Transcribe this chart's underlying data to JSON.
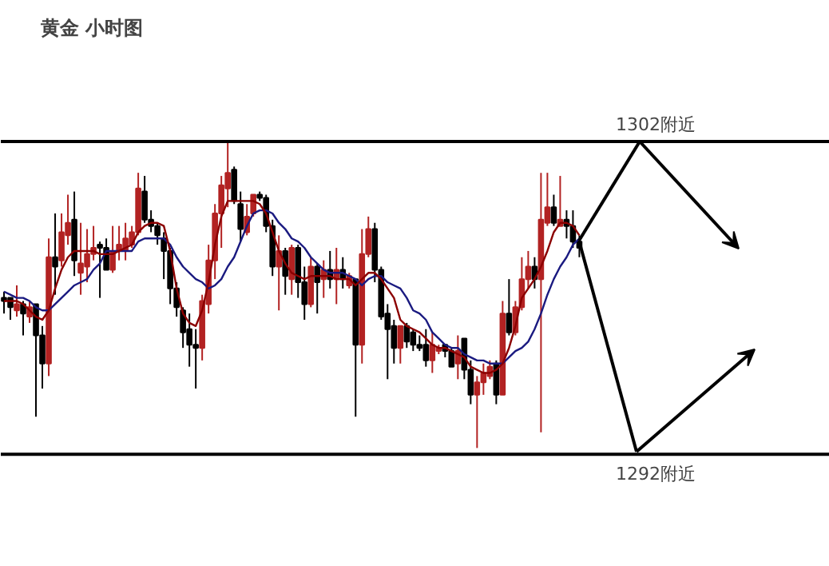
{
  "chart_data": {
    "type": "candlestick",
    "title": "黄金 小时图",
    "categories": [
      null,
      null,
      null,
      null,
      null,
      null,
      null,
      null,
      null,
      null,
      null,
      null,
      null,
      null,
      null,
      null,
      null,
      null,
      null,
      null,
      null,
      null,
      null,
      null,
      null,
      null,
      null,
      null,
      null,
      null,
      null,
      null,
      null,
      null,
      null,
      null,
      null,
      null,
      null,
      null,
      null,
      null,
      null,
      null,
      null,
      null,
      null,
      null,
      null,
      null,
      null,
      null,
      null,
      null,
      null,
      null,
      null,
      null,
      null,
      null,
      null,
      null,
      null,
      null,
      null,
      null,
      null,
      null,
      null,
      null,
      null,
      null,
      null,
      null,
      null,
      null,
      null,
      null,
      null,
      null,
      null,
      null,
      null,
      null,
      null,
      null,
      null,
      null,
      null,
      null,
      null
    ],
    "ylim": [
      1288.4,
      1306.5
    ],
    "tick_labels": false,
    "grid": false,
    "ohlc": [
      [
        1297.0,
        1297.2,
        1296.5,
        1296.9
      ],
      [
        1297.0,
        1297.0,
        1296.3,
        1296.7
      ],
      [
        1296.6,
        1297.4,
        1296.4,
        1296.8
      ],
      [
        1296.8,
        1296.9,
        1295.8,
        1296.5
      ],
      [
        1296.4,
        1296.9,
        1296.2,
        1296.7
      ],
      [
        1296.8,
        1296.8,
        1293.2,
        1295.8
      ],
      [
        1295.8,
        1296.1,
        1294.1,
        1294.9
      ],
      [
        1294.9,
        1298.9,
        1294.5,
        1298.3
      ],
      [
        1298.3,
        1299.7,
        1297.1,
        1298.0
      ],
      [
        1298.2,
        1299.7,
        1298.0,
        1299.1
      ],
      [
        1299.0,
        1300.3,
        1298.7,
        1299.4
      ],
      [
        1299.5,
        1300.4,
        1297.7,
        1298.2
      ],
      [
        1297.8,
        1299.4,
        1297.1,
        1298.1
      ],
      [
        1298.0,
        1299.2,
        1297.5,
        1298.4
      ],
      [
        1298.4,
        1299.3,
        1298.2,
        1298.6
      ],
      [
        1298.7,
        1298.8,
        1297.0,
        1298.6
      ],
      [
        1298.6,
        1298.9,
        1297.9,
        1297.9
      ],
      [
        1297.9,
        1299.3,
        1297.8,
        1298.5
      ],
      [
        1298.5,
        1299.3,
        1298.2,
        1298.7
      ],
      [
        1298.5,
        1299.4,
        1298.2,
        1298.9
      ],
      [
        1298.7,
        1299.3,
        1298.6,
        1299.1
      ],
      [
        1299.1,
        1301.0,
        1299.0,
        1300.5
      ],
      [
        1300.4,
        1300.9,
        1299.4,
        1299.5
      ],
      [
        1299.5,
        1299.8,
        1299.1,
        1299.3
      ],
      [
        1299.3,
        1299.4,
        1298.7,
        1299.0
      ],
      [
        1298.9,
        1299.1,
        1297.6,
        1298.5
      ],
      [
        1298.5,
        1298.6,
        1296.8,
        1297.3
      ],
      [
        1297.3,
        1297.5,
        1296.4,
        1296.7
      ],
      [
        1296.6,
        1296.7,
        1295.4,
        1295.9
      ],
      [
        1296.0,
        1296.5,
        1294.8,
        1295.5
      ],
      [
        1295.5,
        1296.0,
        1294.1,
        1295.4
      ],
      [
        1295.4,
        1297.1,
        1295.0,
        1296.9
      ],
      [
        1296.8,
        1298.7,
        1296.5,
        1298.2
      ],
      [
        1298.2,
        1300.0,
        1297.6,
        1299.7
      ],
      [
        1299.7,
        1300.9,
        1298.6,
        1300.6
      ],
      [
        1300.5,
        1302.0,
        1299.9,
        1301.0
      ],
      [
        1301.1,
        1301.2,
        1300.0,
        1300.1
      ],
      [
        1300.0,
        1300.4,
        1298.8,
        1299.2
      ],
      [
        1299.1,
        1300.0,
        1299.0,
        1299.6
      ],
      [
        1299.7,
        1300.3,
        1299.6,
        1300.3
      ],
      [
        1300.3,
        1300.4,
        1300.1,
        1300.2
      ],
      [
        1300.2,
        1300.3,
        1299.1,
        1299.3
      ],
      [
        1299.3,
        1299.5,
        1297.7,
        1298.0
      ],
      [
        1298.0,
        1299.0,
        1296.6,
        1298.5
      ],
      [
        1298.5,
        1298.6,
        1297.1,
        1297.7
      ],
      [
        1297.6,
        1298.7,
        1297.1,
        1298.6
      ],
      [
        1298.6,
        1298.7,
        1297.0,
        1297.5
      ],
      [
        1297.5,
        1298.0,
        1296.3,
        1296.8
      ],
      [
        1296.8,
        1298.3,
        1296.7,
        1298.0
      ],
      [
        1298.0,
        1298.1,
        1296.5,
        1297.5
      ],
      [
        1297.6,
        1298.2,
        1297.0,
        1297.9
      ],
      [
        1297.9,
        1298.5,
        1297.3,
        1297.6
      ],
      [
        1297.6,
        1298.6,
        1296.8,
        1297.9
      ],
      [
        1297.9,
        1298.3,
        1297.3,
        1297.6
      ],
      [
        1297.4,
        1297.8,
        1297.3,
        1297.7
      ],
      [
        1297.6,
        1297.6,
        1293.2,
        1295.5
      ],
      [
        1295.5,
        1299.2,
        1294.9,
        1298.4
      ],
      [
        1298.4,
        1299.6,
        1298.3,
        1299.2
      ],
      [
        1299.2,
        1299.4,
        1297.5,
        1297.9
      ],
      [
        1297.9,
        1298.0,
        1296.3,
        1296.4
      ],
      [
        1296.5,
        1296.8,
        1294.4,
        1296.0
      ],
      [
        1296.1,
        1296.3,
        1294.9,
        1295.4
      ],
      [
        1295.4,
        1296.1,
        1294.9,
        1296.1
      ],
      [
        1296.1,
        1296.2,
        1295.4,
        1295.6
      ],
      [
        1295.9,
        1296.0,
        1295.3,
        1295.5
      ],
      [
        1295.5,
        1295.8,
        1295.3,
        1295.4
      ],
      [
        1295.5,
        1296.0,
        1294.8,
        1295.0
      ],
      [
        1295.0,
        1295.9,
        1294.6,
        1295.5
      ],
      [
        1295.3,
        1295.5,
        1295.2,
        1295.4
      ],
      [
        1295.5,
        1295.5,
        1295.1,
        1295.3
      ],
      [
        1295.3,
        1295.4,
        1294.8,
        1294.8
      ],
      [
        1294.9,
        1295.8,
        1294.4,
        1295.3
      ],
      [
        1295.7,
        1295.7,
        1294.4,
        1294.7
      ],
      [
        1294.7,
        1295.0,
        1293.6,
        1293.9
      ],
      [
        1293.9,
        1294.5,
        1292.2,
        1294.3
      ],
      [
        1294.3,
        1294.9,
        1293.9,
        1294.6
      ],
      [
        1294.5,
        1295.0,
        1294.4,
        1294.8
      ],
      [
        1294.9,
        1295.0,
        1293.6,
        1293.9
      ],
      [
        1293.9,
        1296.9,
        1293.9,
        1296.5
      ],
      [
        1296.5,
        1297.6,
        1295.8,
        1295.9
      ],
      [
        1295.9,
        1296.9,
        1295.8,
        1296.7
      ],
      [
        1296.7,
        1298.3,
        1296.6,
        1297.6
      ],
      [
        1297.6,
        1298.5,
        1297.3,
        1298.0
      ],
      [
        1298.0,
        1298.3,
        1297.3,
        1297.6
      ],
      [
        1297.6,
        1301.0,
        1292.7,
        1299.5
      ],
      [
        1299.4,
        1301.0,
        1299.3,
        1299.9
      ],
      [
        1299.9,
        1300.3,
        1299.3,
        1299.4
      ],
      [
        1299.3,
        1300.9,
        1299.3,
        1299.5
      ],
      [
        1299.5,
        1299.8,
        1298.9,
        1299.3
      ],
      [
        1299.3,
        1299.8,
        1298.6,
        1298.8
      ],
      [
        1298.8,
        1299.0,
        1298.3,
        1298.6
      ]
    ],
    "colors": [
      "#000000",
      "#000000",
      "#b22222",
      "#000000",
      "#b22222",
      "#000000",
      "#000000",
      "#b22222",
      "#000000",
      "#b22222",
      "#b22222",
      "#000000",
      "#b22222",
      "#b22222",
      "#b22222",
      "#000000",
      "#000000",
      "#b22222",
      "#b22222",
      "#b22222",
      "#b22222",
      "#b22222",
      "#000000",
      "#000000",
      "#000000",
      "#000000",
      "#000000",
      "#000000",
      "#000000",
      "#000000",
      "#000000",
      "#b22222",
      "#b22222",
      "#b22222",
      "#b22222",
      "#b22222",
      "#000000",
      "#000000",
      "#b22222",
      "#b22222",
      "#000000",
      "#000000",
      "#000000",
      "#b22222",
      "#000000",
      "#b22222",
      "#000000",
      "#000000",
      "#b22222",
      "#000000",
      "#b22222",
      "#000000",
      "#b22222",
      "#000000",
      "#b22222",
      "#000000",
      "#b22222",
      "#b22222",
      "#000000",
      "#000000",
      "#000000",
      "#000000",
      "#b22222",
      "#000000",
      "#000000",
      "#000000",
      "#000000",
      "#b22222",
      "#b22222",
      "#000000",
      "#000000",
      "#b22222",
      "#000000",
      "#000000",
      "#b22222",
      "#b22222",
      "#b22222",
      "#000000",
      "#b22222",
      "#000000",
      "#b22222",
      "#b22222",
      "#b22222",
      "#000000",
      "#b22222",
      "#b22222",
      "#000000",
      "#b22222",
      "#000000",
      "#000000",
      "#000000"
    ],
    "series": [
      {
        "type": "line",
        "color": "#1a1a80",
        "values": [
          1297.2,
          1297.1,
          1297.0,
          1297.0,
          1296.9,
          1296.7,
          1296.6,
          1296.6,
          1296.8,
          1297.0,
          1297.2,
          1297.4,
          1297.5,
          1297.6,
          1297.9,
          1298.1,
          1298.5,
          1298.5,
          1298.5,
          1298.5,
          1298.5,
          1298.8,
          1298.9,
          1298.9,
          1298.9,
          1298.9,
          1298.7,
          1298.3,
          1298.0,
          1297.8,
          1297.6,
          1297.5,
          1297.3,
          1297.4,
          1297.6,
          1298.0,
          1298.3,
          1298.8,
          1299.3,
          1299.7,
          1299.8,
          1299.8,
          1299.7,
          1299.4,
          1299.2,
          1298.9,
          1298.8,
          1298.6,
          1298.3,
          1298.1,
          1297.9,
          1297.8,
          1297.8,
          1297.8,
          1297.7,
          1297.6,
          1297.4,
          1297.6,
          1297.7,
          1297.7,
          1297.5,
          1297.4,
          1297.3,
          1297.0,
          1296.6,
          1296.5,
          1296.3,
          1295.9,
          1295.7,
          1295.5,
          1295.4,
          1295.4,
          1295.2,
          1295.1,
          1295.0,
          1295.0,
          1294.9,
          1294.9,
          1294.9,
          1295.1,
          1295.3,
          1295.4,
          1295.6,
          1296.0,
          1296.5,
          1297.1,
          1297.6,
          1298.0,
          1298.3,
          1298.7,
          1298.9
        ]
      },
      {
        "type": "line",
        "color": "#8b0000",
        "values": [
          1296.9,
          1296.9,
          1296.9,
          1296.8,
          1296.6,
          1296.4,
          1296.3,
          1296.6,
          1297.3,
          1297.9,
          1298.3,
          1298.5,
          1298.5,
          1298.5,
          1298.5,
          1298.4,
          1298.4,
          1298.4,
          1298.5,
          1298.6,
          1298.7,
          1299.1,
          1299.3,
          1299.4,
          1299.4,
          1299.3,
          1298.5,
          1297.3,
          1296.5,
          1296.2,
          1296.1,
          1296.6,
          1297.5,
          1298.7,
          1299.6,
          1300.1,
          1300.1,
          1300.1,
          1300.1,
          1300.1,
          1300.0,
          1299.7,
          1299.1,
          1298.5,
          1298.1,
          1297.8,
          1297.7,
          1297.6,
          1297.7,
          1297.7,
          1297.7,
          1297.7,
          1297.6,
          1297.6,
          1297.6,
          1297.4,
          1297.6,
          1297.8,
          1297.8,
          1297.6,
          1297.3,
          1297.0,
          1296.3,
          1296.1,
          1296.0,
          1295.9,
          1295.7,
          1295.5,
          1295.4,
          1295.4,
          1295.3,
          1295.2,
          1295.1,
          1294.8,
          1294.7,
          1294.6,
          1294.6,
          1294.7,
          1294.9,
          1295.4,
          1296.1,
          1297.0,
          1297.3,
          1297.6,
          1298.0,
          1298.5,
          1299.1,
          1299.4,
          1299.4,
          1299.3,
          1299.0
        ]
      }
    ],
    "ref_lines": [
      {
        "axis": "y",
        "value": 1302,
        "label": "1302附近",
        "color": "#000000"
      },
      {
        "axis": "y",
        "value": 1292,
        "label": "1292附近",
        "color": "#000000"
      }
    ]
  }
}
